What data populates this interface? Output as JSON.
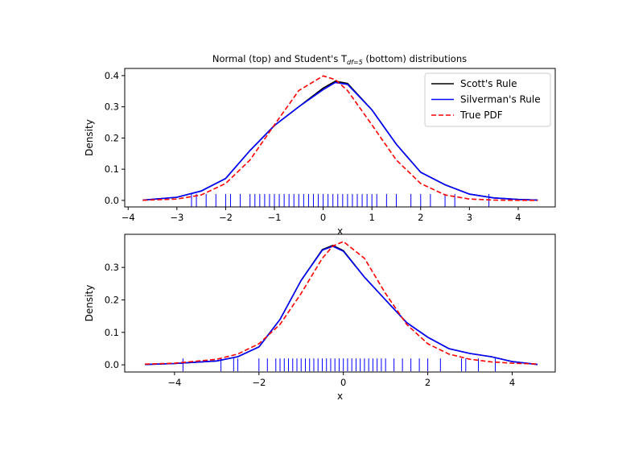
{
  "chart_data": [
    {
      "type": "line",
      "title": [
        "Normal (top) and Student's T",
        "df=5",
        " (bottom) distributions"
      ],
      "x_label": "x",
      "y_label": "Density",
      "xlim": [
        -4.07,
        4.76
      ],
      "ylim": [
        -0.021,
        0.423
      ],
      "xticks": [
        {
          "value": -4,
          "label": "−4"
        },
        {
          "value": -3,
          "label": "−3"
        },
        {
          "value": -2,
          "label": "−2"
        },
        {
          "value": -1,
          "label": "−1"
        },
        0,
        1,
        2,
        3,
        4
      ],
      "yticks": [
        {
          "value": 0,
          "label": "0.0"
        },
        0.1,
        0.2,
        0.3,
        0.4
      ],
      "legend": "upper right",
      "x": [
        -3.7,
        -3,
        -2.5,
        -2,
        -1.5,
        -1,
        -0.5,
        0,
        0.25,
        0.5,
        1,
        1.5,
        2,
        2.5,
        3,
        3.5,
        4,
        4.4
      ],
      "series": [
        {
          "name": "Scott's Rule",
          "color": "#000000",
          "linestyle": "solid",
          "values": [
            0.001,
            0.01,
            0.03,
            0.07,
            0.16,
            0.24,
            0.3,
            0.36,
            0.382,
            0.375,
            0.29,
            0.18,
            0.09,
            0.05,
            0.02,
            0.008,
            0.003,
            0.001
          ]
        },
        {
          "name": "Silverman's Rule",
          "color": "#0000ff",
          "linestyle": "solid",
          "values": [
            0.001,
            0.01,
            0.03,
            0.07,
            0.16,
            0.24,
            0.3,
            0.355,
            0.378,
            0.372,
            0.29,
            0.18,
            0.09,
            0.05,
            0.02,
            0.008,
            0.003,
            0.001
          ]
        },
        {
          "name": "True PDF",
          "color": "#ff0000",
          "linestyle": "dashed",
          "values": [
            0.0004,
            0.0044,
            0.0175,
            0.054,
            0.1295,
            0.242,
            0.352,
            0.399,
            0.387,
            0.352,
            0.242,
            0.1295,
            0.054,
            0.0175,
            0.0044,
            0.0009,
            0.0001,
            3e-05
          ]
        }
      ],
      "rug": {
        "color": "#0000ff",
        "values": [
          -2.7,
          -2.6,
          -2.4,
          -2.2,
          -2.0,
          -1.9,
          -1.7,
          -1.5,
          -1.4,
          -1.3,
          -1.2,
          -1.1,
          -1.0,
          -0.9,
          -0.8,
          -0.7,
          -0.6,
          -0.5,
          -0.4,
          -0.3,
          -0.2,
          -0.1,
          0.0,
          0.1,
          0.2,
          0.3,
          0.4,
          0.5,
          0.6,
          0.7,
          0.8,
          0.9,
          1.0,
          1.1,
          1.3,
          1.5,
          1.8,
          2.0,
          2.2,
          2.5,
          2.7,
          3.4
        ]
      }
    },
    {
      "type": "line",
      "x_label": "x",
      "y_label": "Density",
      "xlim": [
        -5.18,
        5.02
      ],
      "ylim": [
        -0.022,
        0.402
      ],
      "xticks": [
        {
          "value": -4,
          "label": "−4"
        },
        {
          "value": -2,
          "label": "−2"
        },
        0,
        2,
        4
      ],
      "yticks": [
        {
          "value": 0,
          "label": "0.0"
        },
        0.1,
        0.2,
        0.3
      ],
      "x": [
        -4.7,
        -4,
        -3,
        -2.5,
        -2,
        -1.5,
        -1,
        -0.5,
        -0.25,
        0,
        0.5,
        1,
        1.5,
        2,
        2.5,
        3,
        3.5,
        4,
        4.6
      ],
      "series": [
        {
          "name": "Scott's Rule",
          "color": "#000000",
          "linestyle": "solid",
          "values": [
            0.001,
            0.004,
            0.012,
            0.025,
            0.055,
            0.14,
            0.26,
            0.355,
            0.368,
            0.352,
            0.27,
            0.2,
            0.13,
            0.085,
            0.05,
            0.035,
            0.025,
            0.01,
            0.001
          ]
        },
        {
          "name": "Silverman's Rule",
          "color": "#0000ff",
          "linestyle": "solid",
          "values": [
            0.001,
            0.004,
            0.012,
            0.025,
            0.055,
            0.14,
            0.26,
            0.353,
            0.365,
            0.35,
            0.27,
            0.2,
            0.13,
            0.085,
            0.05,
            0.035,
            0.025,
            0.01,
            0.001
          ]
        },
        {
          "name": "True PDF",
          "color": "#ff0000",
          "linestyle": "dashed",
          "values": [
            0.0024,
            0.0051,
            0.0173,
            0.0333,
            0.0651,
            0.1245,
            0.2197,
            0.328,
            0.3657,
            0.3796,
            0.328,
            0.2197,
            0.1245,
            0.0651,
            0.0333,
            0.0173,
            0.0092,
            0.0051,
            0.0026
          ]
        }
      ],
      "rug": {
        "color": "#0000ff",
        "values": [
          -3.8,
          -2.9,
          -2.6,
          -2.5,
          -2.0,
          -1.8,
          -1.6,
          -1.5,
          -1.4,
          -1.3,
          -1.2,
          -1.1,
          -1.0,
          -0.9,
          -0.8,
          -0.7,
          -0.6,
          -0.5,
          -0.4,
          -0.3,
          -0.2,
          -0.1,
          0.0,
          0.1,
          0.2,
          0.3,
          0.4,
          0.5,
          0.6,
          0.7,
          0.8,
          0.9,
          1.0,
          1.2,
          1.4,
          1.6,
          1.8,
          2.0,
          2.3,
          2.8,
          2.9,
          3.2,
          3.6
        ]
      }
    }
  ]
}
